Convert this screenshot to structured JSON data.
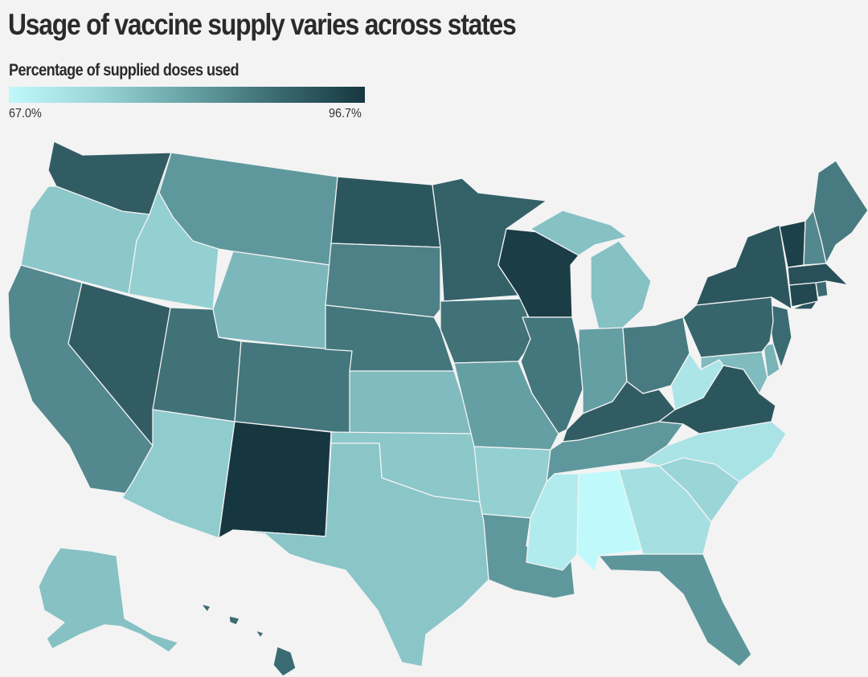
{
  "title": "Usage of vaccine supply varies across states",
  "legend": {
    "title": "Percentage of supplied doses used",
    "min_label": "67.0%",
    "max_label": "96.7%",
    "min_value": 67.0,
    "max_value": 96.7,
    "min_color": "#c0f9fb",
    "max_color": "#163740"
  },
  "states": [
    {
      "code": "WA",
      "shade": 0.82
    },
    {
      "code": "OR",
      "shade": 0.32
    },
    {
      "code": "CA",
      "shade": 0.62
    },
    {
      "code": "ID",
      "shade": 0.28
    },
    {
      "code": "NV",
      "shade": 0.82
    },
    {
      "code": "MT",
      "shade": 0.55
    },
    {
      "code": "WY",
      "shade": 0.4
    },
    {
      "code": "UT",
      "shade": 0.72
    },
    {
      "code": "AZ",
      "shade": 0.3
    },
    {
      "code": "CO",
      "shade": 0.7
    },
    {
      "code": "NM",
      "shade": 1.0
    },
    {
      "code": "ND",
      "shade": 0.85
    },
    {
      "code": "SD",
      "shade": 0.65
    },
    {
      "code": "NE",
      "shade": 0.7
    },
    {
      "code": "KS",
      "shade": 0.38
    },
    {
      "code": "OK",
      "shade": 0.32
    },
    {
      "code": "TX",
      "shade": 0.33
    },
    {
      "code": "MN",
      "shade": 0.8
    },
    {
      "code": "IA",
      "shade": 0.72
    },
    {
      "code": "MO",
      "shade": 0.52
    },
    {
      "code": "AR",
      "shade": 0.28
    },
    {
      "code": "LA",
      "shade": 0.55
    },
    {
      "code": "WI",
      "shade": 0.97
    },
    {
      "code": "IL",
      "shade": 0.7
    },
    {
      "code": "MI",
      "shade": 0.35
    },
    {
      "code": "IN",
      "shade": 0.52
    },
    {
      "code": "OH",
      "shade": 0.68
    },
    {
      "code": "KY",
      "shade": 0.82
    },
    {
      "code": "TN",
      "shade": 0.55
    },
    {
      "code": "MS",
      "shade": 0.1
    },
    {
      "code": "AL",
      "shade": 0.0
    },
    {
      "code": "GA",
      "shade": 0.18
    },
    {
      "code": "FL",
      "shade": 0.56
    },
    {
      "code": "SC",
      "shade": 0.25
    },
    {
      "code": "NC",
      "shade": 0.15
    },
    {
      "code": "VA",
      "shade": 0.85
    },
    {
      "code": "WV",
      "shade": 0.14
    },
    {
      "code": "MD",
      "shade": 0.38
    },
    {
      "code": "DE",
      "shade": 0.42
    },
    {
      "code": "NJ",
      "shade": 0.75
    },
    {
      "code": "PA",
      "shade": 0.78
    },
    {
      "code": "NY",
      "shade": 0.85
    },
    {
      "code": "CT",
      "shade": 0.92
    },
    {
      "code": "RI",
      "shade": 0.75
    },
    {
      "code": "MA",
      "shade": 0.88
    },
    {
      "code": "VT",
      "shade": 0.95
    },
    {
      "code": "NH",
      "shade": 0.62
    },
    {
      "code": "ME",
      "shade": 0.68
    },
    {
      "code": "AK",
      "shade": 0.35
    },
    {
      "code": "HI",
      "shade": 0.75
    }
  ]
}
